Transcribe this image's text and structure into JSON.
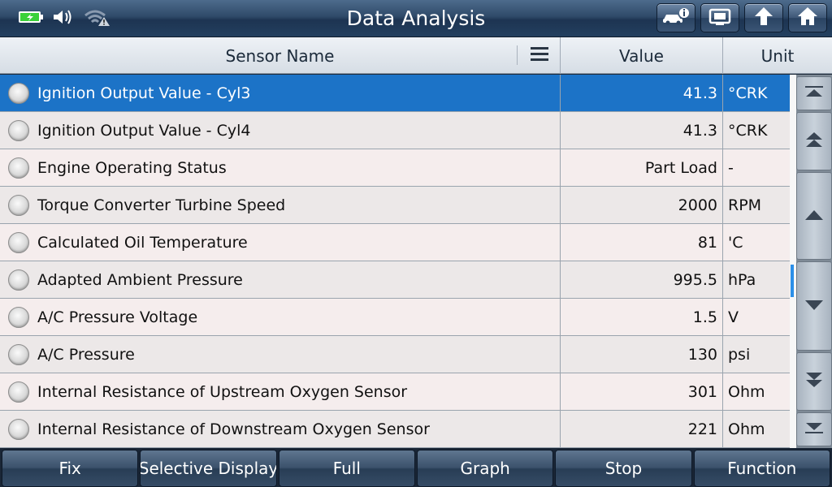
{
  "header": {
    "title": "Data Analysis"
  },
  "columns": {
    "name": "Sensor Name",
    "value": "Value",
    "unit": "Unit"
  },
  "rows": [
    {
      "name": "Ignition Output Value - Cyl3",
      "value": "41.3",
      "unit": "°CRK",
      "selected": true
    },
    {
      "name": "Ignition Output Value - Cyl4",
      "value": "41.3",
      "unit": "°CRK"
    },
    {
      "name": "Engine Operating Status",
      "value": "Part Load",
      "unit": "-"
    },
    {
      "name": "Torque Converter Turbine Speed",
      "value": "2000",
      "unit": "RPM"
    },
    {
      "name": "Calculated Oil Temperature",
      "value": "81",
      "unit": "'C"
    },
    {
      "name": "Adapted Ambient Pressure",
      "value": "995.5",
      "unit": "hPa"
    },
    {
      "name": "A/C Pressure Voltage",
      "value": "1.5",
      "unit": "V"
    },
    {
      "name": "A/C Pressure",
      "value": "130",
      "unit": "psi"
    },
    {
      "name": "Internal Resistance of Upstream Oxygen Sensor",
      "value": "301",
      "unit": "Ohm"
    },
    {
      "name": "Internal Resistance of Downstream Oxygen Sensor",
      "value": "221",
      "unit": "Ohm"
    }
  ],
  "toolbar": {
    "fix": "Fix",
    "selective_display": "Selective Display",
    "full": "Full",
    "graph": "Graph",
    "stop": "Stop",
    "function": "Function"
  },
  "icons": {
    "battery": "battery-charging-icon",
    "volume": "speaker-icon",
    "wifi": "wifi-warning-icon",
    "vehicle_info": "car-info-icon",
    "print": "print-icon",
    "back": "back-up-arrow-icon",
    "home": "home-icon"
  },
  "colors": {
    "selected_row": "#1c73c7",
    "battery": "#3ad13a",
    "scroll_thumb": "#2c8fe8"
  }
}
